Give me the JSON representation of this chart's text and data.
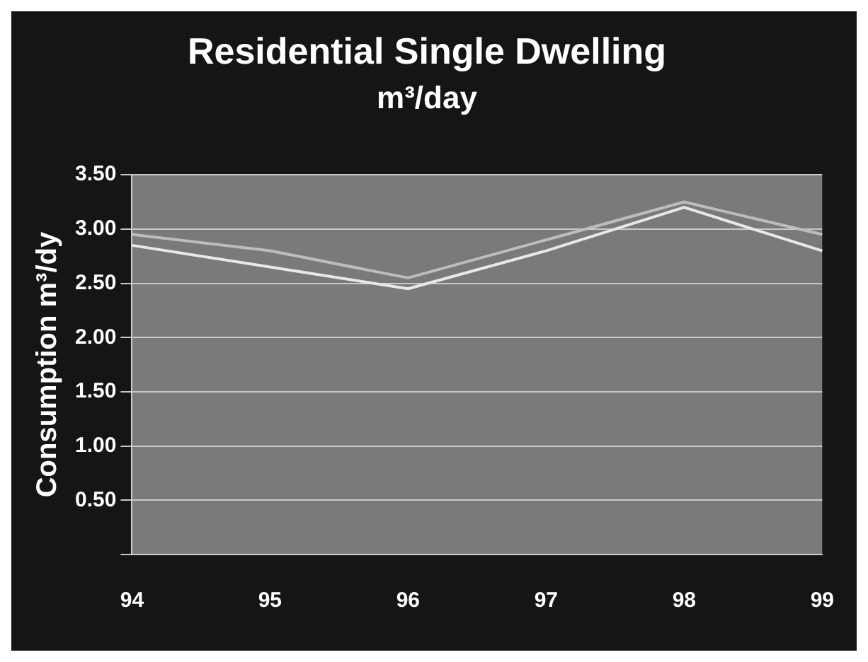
{
  "chart_data": {
    "type": "line",
    "title": "Residential Single Dwelling",
    "subtitle": "m³/day",
    "ylabel": "Consumption m³/dy",
    "categories": [
      "94",
      "95",
      "96",
      "97",
      "98",
      "99"
    ],
    "series": [
      {
        "color": "#e8e8e8",
        "values": [
          2.85,
          2.65,
          2.45,
          2.8,
          3.2,
          2.8
        ]
      },
      {
        "color": "#bdbdbd",
        "values": [
          2.95,
          2.8,
          2.55,
          2.9,
          3.25,
          2.95
        ]
      }
    ],
    "ylim": [
      0,
      3.5
    ],
    "yticks": [
      {
        "value": 0,
        "label": null
      },
      {
        "value": 0.5,
        "label": "0.50"
      },
      {
        "value": 1,
        "label": "1.00"
      },
      {
        "value": 1.5,
        "label": "1.50"
      },
      {
        "value": 2,
        "label": "2.00"
      },
      {
        "value": 2.5,
        "label": "2.50"
      },
      {
        "value": 3,
        "label": "3.00"
      },
      {
        "value": 3.5,
        "label": "3.50"
      }
    ],
    "grid": "y",
    "legend": false,
    "marker": "none",
    "line_style": "solid"
  }
}
